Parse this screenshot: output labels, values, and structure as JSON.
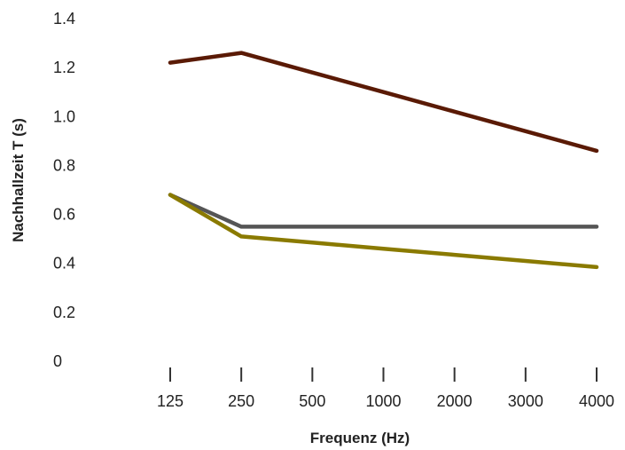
{
  "chart_data": {
    "type": "line",
    "xlabel": "Frequenz (Hz)",
    "ylabel": "Nachhallzeit T (s)",
    "categories": [
      "125",
      "250",
      "500",
      "1000",
      "2000",
      "3000",
      "4000"
    ],
    "y_tick_labels": [
      "0",
      "0.2",
      "0.4",
      "0.6",
      "0.8",
      "1.0",
      "1.2",
      "1.4"
    ],
    "ylim": [
      0,
      1.4
    ],
    "grid": false,
    "legend": "none",
    "series": [
      {
        "color": "#5a1a05",
        "values": [
          1.22,
          1.26,
          1.18,
          1.1,
          1.02,
          0.94,
          0.86
        ]
      },
      {
        "color": "#555555",
        "values": [
          0.68,
          0.55,
          0.55,
          0.55,
          0.55,
          0.55,
          0.55
        ]
      },
      {
        "color": "#8a7a00",
        "values": [
          0.68,
          0.51,
          0.485,
          0.46,
          0.435,
          0.41,
          0.385
        ]
      }
    ]
  }
}
